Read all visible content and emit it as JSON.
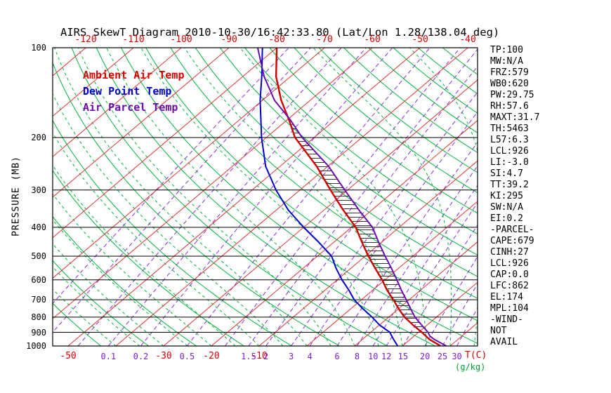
{
  "title": "AIRS SkewT Diagram 2010-10-30/16:42:33.80 (Lat/Lon 1.28/138.04 deg)",
  "legend": [
    {
      "label": "Ambient Air Temp",
      "color": "#dd0000"
    },
    {
      "label": "Dew Point Temp",
      "color": "#0000cc"
    },
    {
      "label": "Air Parcel Temp",
      "color": "#6a0dad"
    }
  ],
  "axes": {
    "pressure_label": "PRESSURE (MB)",
    "pressure_ticks": [
      100,
      200,
      300,
      400,
      500,
      600,
      700,
      800,
      900,
      1000
    ],
    "top_temp_ticks": [
      -120,
      -110,
      -100,
      -90,
      -80,
      -70,
      -60,
      -50,
      -40
    ],
    "bottom_temp_ticks": [
      -50,
      -30,
      -20,
      -10
    ],
    "temp_axis_label": "T(C)",
    "mixing_ratio_axis_label": "(g/kg)",
    "mixing_ratio_ticks": [
      0.1,
      0.2,
      0.5,
      1.5,
      2,
      3,
      4,
      6,
      8,
      10,
      12,
      15,
      20,
      25,
      30
    ]
  },
  "stats": [
    "TP:100",
    "MW:N/A",
    "FRZ:579",
    "WB0:620",
    "PW:29.75",
    "RH:57.6",
    "MAXT:31.7",
    "TH:5463",
    "L57:6.3",
    "LCL:926",
    "LI:-3.0",
    "SI:4.7",
    "TT:39.2",
    "KI:295",
    "SW:N/A",
    "EI:0.2",
    "-PARCEL-",
    "CAPE:679",
    "CINH:27",
    "LCL:926",
    "CAP:0.0",
    "LFC:862",
    "EL:174",
    "MPL:104",
    "-WIND-",
    "NOT",
    "AVAIL"
  ],
  "colors": {
    "isotherm": "#e03434",
    "isobar": "#000000",
    "dry_adiabat": "#00b43c",
    "moist_adiabat": "#00b43c",
    "mixing_line": "#8a2be2",
    "temp_label": "#dd0000",
    "mixing_label": "#7b1fd2",
    "gkg_label": "#00a030",
    "hatch": "#1a1a1a"
  },
  "chart_data": {
    "type": "line",
    "title": "AIRS SkewT Diagram 2010-10-30/16:42:33.80 (Lat/Lon 1.28/138.04 deg)",
    "xlabel": "Temperature (C)",
    "ylabel": "Pressure (MB)",
    "y_scale": "log-pressure",
    "skewed": true,
    "ylim": [
      100,
      1000
    ],
    "top_axis_temp_range": [
      -120,
      -40
    ],
    "series": [
      {
        "name": "Ambient Air Temp",
        "color": "#cc0000",
        "points": [
          [
            1000,
            28
          ],
          [
            950,
            24
          ],
          [
            900,
            20.7
          ],
          [
            850,
            17
          ],
          [
            800,
            13.3
          ],
          [
            750,
            10
          ],
          [
            700,
            6.7
          ],
          [
            650,
            3
          ],
          [
            600,
            -0.6
          ],
          [
            550,
            -4.8
          ],
          [
            500,
            -9.3
          ],
          [
            450,
            -14
          ],
          [
            400,
            -19.1
          ],
          [
            350,
            -26
          ],
          [
            300,
            -33.6
          ],
          [
            250,
            -42.3
          ],
          [
            200,
            -54
          ],
          [
            175,
            -59.5
          ],
          [
            150,
            -66.1
          ],
          [
            125,
            -73
          ],
          [
            100,
            -80
          ]
        ]
      },
      {
        "name": "Dew Point Temp",
        "color": "#0000cc",
        "points": [
          [
            1000,
            19
          ],
          [
            950,
            16.5
          ],
          [
            900,
            14
          ],
          [
            850,
            10
          ],
          [
            800,
            6.5
          ],
          [
            750,
            2.5
          ],
          [
            700,
            -1.5
          ],
          [
            650,
            -5
          ],
          [
            600,
            -9
          ],
          [
            550,
            -13
          ],
          [
            500,
            -17
          ],
          [
            450,
            -23
          ],
          [
            400,
            -30
          ],
          [
            350,
            -37.5
          ],
          [
            300,
            -45
          ],
          [
            250,
            -53
          ],
          [
            200,
            -61
          ],
          [
            150,
            -70.5
          ],
          [
            125,
            -76
          ],
          [
            100,
            -83
          ]
        ]
      },
      {
        "name": "Air Parcel Temp",
        "color": "#6a0dad",
        "points": [
          [
            1000,
            29.2
          ],
          [
            950,
            25
          ],
          [
            926,
            23.3
          ],
          [
            900,
            22
          ],
          [
            850,
            18.8
          ],
          [
            800,
            15.5
          ],
          [
            750,
            12.5
          ],
          [
            700,
            9.4
          ],
          [
            650,
            6
          ],
          [
            600,
            2.5
          ],
          [
            550,
            -1.4
          ],
          [
            500,
            -5.8
          ],
          [
            450,
            -10.5
          ],
          [
            400,
            -15.6
          ],
          [
            350,
            -22.7
          ],
          [
            300,
            -30.6
          ],
          [
            250,
            -39.8
          ],
          [
            200,
            -52.5
          ],
          [
            175,
            -59.2
          ],
          [
            150,
            -67.5
          ],
          [
            125,
            -75.5
          ],
          [
            100,
            -84
          ]
        ]
      }
    ],
    "background": {
      "isotherm_step_C": 10,
      "isotherm_range_C": [
        -150,
        40
      ],
      "dry_adiabats_K": [
        220,
        230,
        240,
        250,
        260,
        270,
        280,
        290,
        300,
        310,
        320,
        330,
        340,
        350,
        360,
        370,
        380,
        390,
        400,
        410,
        420,
        430,
        440
      ],
      "moist_adiabats_C": [
        -40,
        -35,
        -30,
        -25,
        -20,
        -15,
        -10,
        -5,
        0,
        5,
        10,
        15,
        20,
        25,
        30,
        35,
        40
      ],
      "mixing_ratio_lines": [
        0.01,
        0.02,
        0.05,
        0.1,
        0.2,
        0.5,
        1,
        1.5,
        2,
        3,
        4,
        6,
        8,
        10,
        12,
        15,
        20,
        25,
        30
      ],
      "cape_hatch": {
        "from_mb": 862,
        "to_mb": 174
      }
    }
  }
}
